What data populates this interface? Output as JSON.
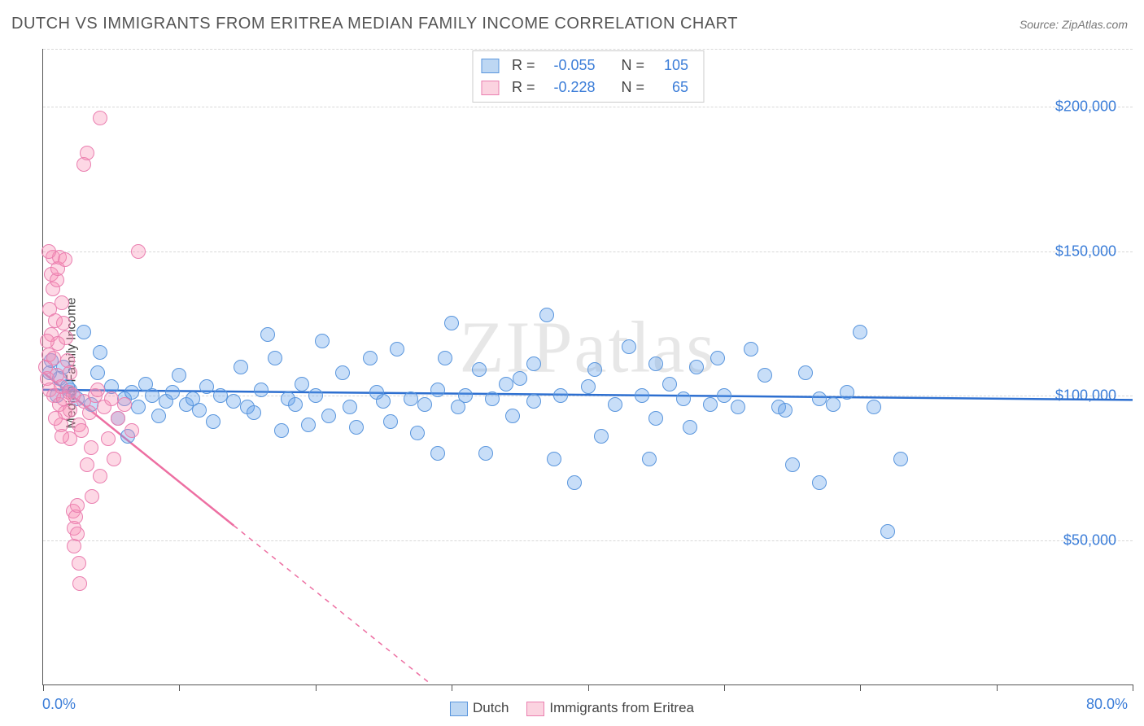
{
  "title": "DUTCH VS IMMIGRANTS FROM ERITREA MEDIAN FAMILY INCOME CORRELATION CHART",
  "source": "Source: ZipAtlas.com",
  "ylabel": "Median Family Income",
  "watermark": "ZIPatlas",
  "chart": {
    "type": "scatter",
    "background_color": "#ffffff",
    "grid_color": "#d8d8d8",
    "axis_color": "#555555",
    "tick_label_color": "#3b7dd8",
    "tick_label_fontsize": 18,
    "title_fontsize": 20,
    "title_color": "#555555",
    "ylabel_fontsize": 16,
    "xlim": [
      0,
      80
    ],
    "ylim": [
      0,
      220000
    ],
    "yticks": [
      50000,
      100000,
      150000,
      200000
    ],
    "ytick_labels": [
      "$50,000",
      "$100,000",
      "$150,000",
      "$200,000"
    ],
    "xticks": [
      0,
      10,
      20,
      30,
      40,
      50,
      60,
      70,
      80
    ],
    "xlabel_min": "0.0%",
    "xlabel_max": "80.0%",
    "marker_radius": 9,
    "marker_stroke_width": 1.5,
    "trendline_width": 2.5
  },
  "series": [
    {
      "name": "Dutch",
      "color_fill": "rgba(96,160,234,0.35)",
      "color_stroke": "#5a96dd",
      "swatch_fill": "#bdd7f3",
      "swatch_border": "#5a96dd",
      "trend_color": "#2d6fd0",
      "R_label": "R =",
      "R_value": "-0.055",
      "N_label": "N =",
      "N_value": "105",
      "trend": {
        "x1": 0,
        "y1": 102000,
        "x2": 80,
        "y2": 98500
      },
      "points": [
        [
          0.5,
          108000
        ],
        [
          0.6,
          112000
        ],
        [
          1.2,
          106000
        ],
        [
          1.5,
          110000
        ],
        [
          1.8,
          103000
        ],
        [
          1.0,
          100000
        ],
        [
          2.0,
          102000
        ],
        [
          2.5,
          99000
        ],
        [
          3,
          122000
        ],
        [
          3.5,
          97000
        ],
        [
          4,
          108000
        ],
        [
          4.2,
          115000
        ],
        [
          5,
          103000
        ],
        [
          5.5,
          92000
        ],
        [
          6,
          99000
        ],
        [
          6.5,
          101000
        ],
        [
          7,
          96000
        ],
        [
          7.5,
          104000
        ],
        [
          8,
          100000
        ],
        [
          8.5,
          93000
        ],
        [
          9,
          98000
        ],
        [
          9.5,
          101000
        ],
        [
          10,
          107000
        ],
        [
          10.5,
          97000
        ],
        [
          11,
          99000
        ],
        [
          11.5,
          95000
        ],
        [
          12,
          103000
        ],
        [
          12.5,
          91000
        ],
        [
          13,
          100000
        ],
        [
          14,
          98000
        ],
        [
          14.5,
          110000
        ],
        [
          15,
          96000
        ],
        [
          16,
          102000
        ],
        [
          16.5,
          121000
        ],
        [
          17,
          113000
        ],
        [
          17.5,
          88000
        ],
        [
          18,
          99000
        ],
        [
          18.5,
          97000
        ],
        [
          19,
          104000
        ],
        [
          19.5,
          90000
        ],
        [
          20,
          100000
        ],
        [
          21,
          93000
        ],
        [
          22,
          108000
        ],
        [
          22.5,
          96000
        ],
        [
          23,
          89000
        ],
        [
          24,
          113000
        ],
        [
          24.5,
          101000
        ],
        [
          25,
          98000
        ],
        [
          25.5,
          91000
        ],
        [
          26,
          116000
        ],
        [
          27,
          99000
        ],
        [
          27.5,
          87000
        ],
        [
          28,
          97000
        ],
        [
          29,
          102000
        ],
        [
          29.5,
          113000
        ],
        [
          30,
          125000
        ],
        [
          30.5,
          96000
        ],
        [
          31,
          100000
        ],
        [
          32,
          109000
        ],
        [
          32.5,
          80000
        ],
        [
          33,
          99000
        ],
        [
          34,
          104000
        ],
        [
          34.5,
          93000
        ],
        [
          35,
          106000
        ],
        [
          36,
          98000
        ],
        [
          37,
          128000
        ],
        [
          37.5,
          78000
        ],
        [
          38,
          100000
        ],
        [
          39,
          70000
        ],
        [
          40,
          103000
        ],
        [
          40.5,
          109000
        ],
        [
          41,
          86000
        ],
        [
          42,
          97000
        ],
        [
          43,
          117000
        ],
        [
          44,
          100000
        ],
        [
          44.5,
          78000
        ],
        [
          45,
          92000
        ],
        [
          46,
          104000
        ],
        [
          47,
          99000
        ],
        [
          48,
          110000
        ],
        [
          49,
          97000
        ],
        [
          49.5,
          113000
        ],
        [
          50,
          100000
        ],
        [
          51,
          96000
        ],
        [
          52,
          116000
        ],
        [
          53,
          107000
        ],
        [
          54,
          96000
        ],
        [
          54.5,
          95000
        ],
        [
          55,
          76000
        ],
        [
          56,
          108000
        ],
        [
          57,
          99000
        ],
        [
          58,
          97000
        ],
        [
          59,
          101000
        ],
        [
          60,
          122000
        ],
        [
          61,
          96000
        ],
        [
          62,
          53000
        ],
        [
          63,
          78000
        ],
        [
          57,
          70000
        ],
        [
          36,
          111000
        ],
        [
          45,
          111000
        ],
        [
          29,
          80000
        ],
        [
          15.5,
          94000
        ],
        [
          20.5,
          119000
        ],
        [
          47.5,
          89000
        ],
        [
          6.2,
          86000
        ]
      ]
    },
    {
      "name": "Immigrants from Eritrea",
      "color_fill": "rgba(248,144,180,0.35)",
      "color_stroke": "#ea7fb0",
      "swatch_fill": "#fbd3e0",
      "swatch_border": "#ea7fb0",
      "trend_color": "#ed6fa2",
      "R_label": "R =",
      "R_value": "-0.228",
      "N_label": "N =",
      "N_value": "65",
      "trend": {
        "x1": 0,
        "y1": 108000,
        "x2": 14,
        "y2": 55000
      },
      "trend_extrapolate": {
        "x1": 14,
        "y1": 55000,
        "x2": 38,
        "y2": -36000
      },
      "points": [
        [
          0.2,
          110000
        ],
        [
          0.3,
          106000
        ],
        [
          0.4,
          114000
        ],
        [
          0.5,
          102000
        ],
        [
          0.5,
          130000
        ],
        [
          0.6,
          142000
        ],
        [
          0.6,
          121000
        ],
        [
          0.7,
          148000
        ],
        [
          0.7,
          137000
        ],
        [
          0.8,
          113000
        ],
        [
          0.8,
          100000
        ],
        [
          0.9,
          126000
        ],
        [
          1.0,
          140000
        ],
        [
          1.0,
          107000
        ],
        [
          1.1,
          118000
        ],
        [
          1.1,
          144000
        ],
        [
          1.2,
          97000
        ],
        [
          1.2,
          148000
        ],
        [
          1.3,
          103000
        ],
        [
          1.4,
          132000
        ],
        [
          1.5,
          125000
        ],
        [
          1.5,
          99000
        ],
        [
          1.6,
          94000
        ],
        [
          1.7,
          120000
        ],
        [
          1.8,
          112000
        ],
        [
          1.9,
          101000
        ],
        [
          2.0,
          85000
        ],
        [
          2.0,
          95000
        ],
        [
          2.2,
          60000
        ],
        [
          2.3,
          54000
        ],
        [
          2.3,
          48000
        ],
        [
          2.4,
          58000
        ],
        [
          2.5,
          62000
        ],
        [
          2.5,
          52000
        ],
        [
          2.6,
          90000
        ],
        [
          2.8,
          88000
        ],
        [
          3.0,
          98000
        ],
        [
          3.0,
          180000
        ],
        [
          3.2,
          76000
        ],
        [
          3.2,
          184000
        ],
        [
          3.4,
          94000
        ],
        [
          3.5,
          82000
        ],
        [
          3.8,
          100000
        ],
        [
          4.0,
          102000
        ],
        [
          4.2,
          72000
        ],
        [
          4.5,
          96000
        ],
        [
          4.2,
          196000
        ],
        [
          4.8,
          85000
        ],
        [
          5.0,
          99000
        ],
        [
          5.2,
          78000
        ],
        [
          5.5,
          92000
        ],
        [
          6.0,
          97000
        ],
        [
          6.5,
          88000
        ],
        [
          7.0,
          150000
        ],
        [
          2.6,
          42000
        ],
        [
          2.7,
          35000
        ],
        [
          2.0,
          108000
        ],
        [
          1.3,
          90000
        ],
        [
          0.4,
          150000
        ],
        [
          0.9,
          92000
        ],
        [
          1.6,
          147000
        ],
        [
          3.6,
          65000
        ],
        [
          2.2,
          100000
        ],
        [
          1.4,
          86000
        ],
        [
          0.3,
          119000
        ]
      ]
    }
  ],
  "legend_bottom": [
    {
      "swatch_fill": "#bdd7f3",
      "swatch_border": "#5a96dd",
      "label": "Dutch"
    },
    {
      "swatch_fill": "#fbd3e0",
      "swatch_border": "#ea7fb0",
      "label": "Immigrants from Eritrea"
    }
  ]
}
